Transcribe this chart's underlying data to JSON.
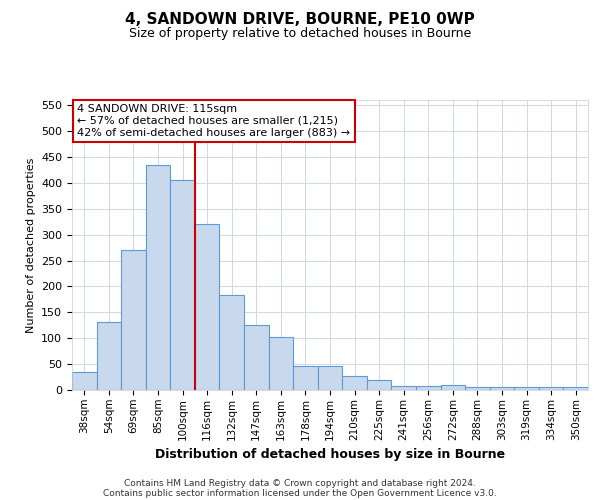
{
  "title1": "4, SANDOWN DRIVE, BOURNE, PE10 0WP",
  "title2": "Size of property relative to detached houses in Bourne",
  "xlabel": "Distribution of detached houses by size in Bourne",
  "ylabel": "Number of detached properties",
  "categories": [
    "38sqm",
    "54sqm",
    "69sqm",
    "85sqm",
    "100sqm",
    "116sqm",
    "132sqm",
    "147sqm",
    "163sqm",
    "178sqm",
    "194sqm",
    "210sqm",
    "225sqm",
    "241sqm",
    "256sqm",
    "272sqm",
    "288sqm",
    "303sqm",
    "319sqm",
    "334sqm",
    "350sqm"
  ],
  "values": [
    35,
    132,
    270,
    435,
    405,
    320,
    183,
    125,
    103,
    46,
    46,
    28,
    20,
    8,
    8,
    10,
    5,
    5,
    5,
    5,
    5
  ],
  "bar_color": "#c8d9ee",
  "bar_edge_color": "#5b9bd5",
  "marker_color": "#cc0000",
  "marker_idx": 5,
  "annotation_line1": "4 SANDOWN DRIVE: 115sqm",
  "annotation_line2": "← 57% of detached houses are smaller (1,215)",
  "annotation_line3": "42% of semi-detached houses are larger (883) →",
  "annotation_box_fc": "#ffffff",
  "annotation_box_ec": "#cc0000",
  "ylim": [
    0,
    560
  ],
  "yticks": [
    0,
    50,
    100,
    150,
    200,
    250,
    300,
    350,
    400,
    450,
    500,
    550
  ],
  "footer1": "Contains HM Land Registry data © Crown copyright and database right 2024.",
  "footer2": "Contains public sector information licensed under the Open Government Licence v3.0.",
  "bg_color": "#ffffff",
  "plot_bg_color": "#ffffff",
  "grid_color": "#d0d8e8"
}
